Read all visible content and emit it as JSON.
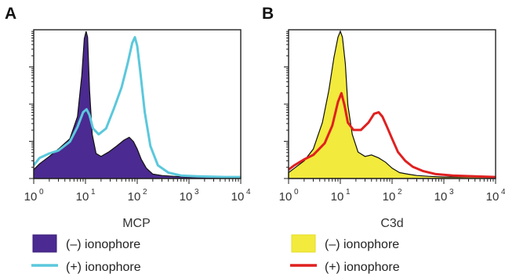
{
  "chart_data": [
    {
      "panel": "A",
      "type": "area",
      "xlabel": "MCP",
      "ylabel": "",
      "x_scale": "log",
      "xlim": [
        1,
        10000
      ],
      "x_ticks": [
        {
          "base": "10",
          "exp": "0"
        },
        {
          "base": "10",
          "exp": "1"
        },
        {
          "base": "10",
          "exp": "2"
        },
        {
          "base": "10",
          "exp": "3"
        },
        {
          "base": "10",
          "exp": "4"
        }
      ],
      "ylim": [
        0,
        100
      ],
      "series": [
        {
          "name": "(–) ionophore",
          "style": "filled",
          "color": "#4b2a91",
          "x": [
            1,
            1.3,
            2,
            3,
            5,
            7,
            8.5,
            9.5,
            10.3,
            11,
            12,
            13.5,
            16,
            20,
            28,
            40,
            55,
            70,
            85,
            100,
            120,
            150,
            200,
            300,
            500,
            1000,
            3000,
            10000
          ],
          "y": [
            6,
            10,
            15,
            20,
            27,
            42,
            70,
            95,
            100,
            96,
            60,
            30,
            17,
            15,
            18,
            22,
            26,
            28,
            25,
            20,
            13,
            7,
            3,
            2,
            1.5,
            1,
            1,
            1
          ]
        },
        {
          "name": "(+) ionophore",
          "style": "line",
          "color": "#5bc8dc",
          "x": [
            1,
            1.3,
            2,
            3,
            5,
            7,
            9,
            10.5,
            12,
            14,
            18,
            25,
            35,
            50,
            65,
            80,
            90,
            100,
            115,
            140,
            180,
            250,
            400,
            700,
            1500,
            5000,
            10000
          ],
          "y": [
            9,
            14,
            17,
            19,
            25,
            35,
            45,
            47,
            43,
            34,
            30,
            34,
            47,
            62,
            78,
            92,
            96,
            90,
            72,
            45,
            22,
            9,
            4,
            2,
            1.5,
            1,
            1
          ]
        }
      ],
      "legend": [
        {
          "label": "(–) ionophore",
          "symbol": "box",
          "color": "#4b2a91"
        },
        {
          "label": "(+) ionophore",
          "symbol": "line",
          "color": "#5bc8dc"
        }
      ]
    },
    {
      "panel": "B",
      "type": "area",
      "xlabel": "C3d",
      "ylabel": "",
      "x_scale": "log",
      "xlim": [
        1,
        10000
      ],
      "x_ticks": [
        {
          "base": "10",
          "exp": "0"
        },
        {
          "base": "10",
          "exp": "1"
        },
        {
          "base": "10",
          "exp": "2"
        },
        {
          "base": "10",
          "exp": "3"
        },
        {
          "base": "10",
          "exp": "4"
        }
      ],
      "ylim": [
        0,
        100
      ],
      "series": [
        {
          "name": "(–) ionophore",
          "style": "filled",
          "color": "#f2ea3c",
          "x": [
            1,
            1.3,
            2,
            3,
            4.5,
            6,
            7.5,
            9,
            10,
            11,
            12.5,
            14,
            17,
            22,
            30,
            40,
            55,
            75,
            100,
            140,
            200,
            300,
            500,
            1000,
            3000,
            10000
          ],
          "y": [
            4,
            7,
            12,
            20,
            38,
            60,
            82,
            96,
            100,
            96,
            78,
            50,
            30,
            18,
            15,
            16,
            14,
            11,
            7,
            4,
            3,
            2,
            1.5,
            1,
            1,
            1
          ]
        },
        {
          "name": "(+) ionophore",
          "style": "line",
          "color": "#e02020",
          "x": [
            1,
            1.3,
            2,
            3,
            5,
            7,
            9,
            10.5,
            12,
            14,
            18,
            25,
            35,
            45,
            55,
            65,
            80,
            100,
            130,
            180,
            250,
            400,
            700,
            1500,
            4000,
            10000
          ],
          "y": [
            6,
            9,
            13,
            16,
            24,
            36,
            52,
            58,
            50,
            38,
            33,
            33,
            38,
            44,
            45,
            42,
            35,
            27,
            18,
            12,
            8,
            5,
            3,
            2,
            1.5,
            1
          ]
        }
      ],
      "legend": [
        {
          "label": "(–) ionophore",
          "symbol": "box",
          "color": "#f2ea3c"
        },
        {
          "label": "(+) ionophore",
          "symbol": "line",
          "color": "#e02020"
        }
      ]
    }
  ]
}
